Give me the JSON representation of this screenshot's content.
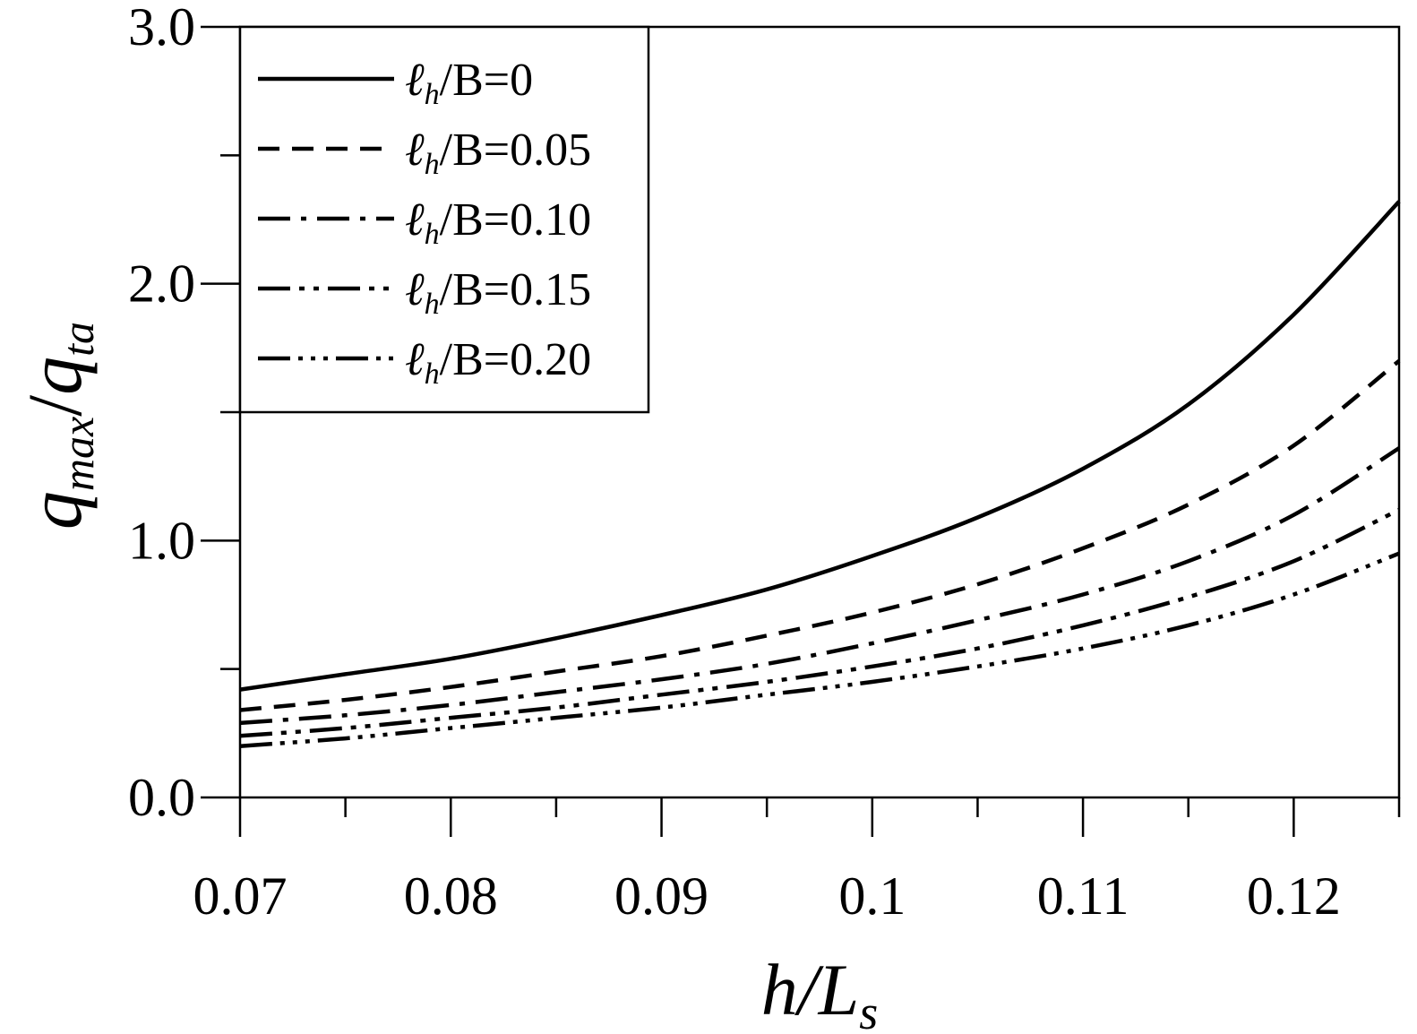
{
  "chart_data": {
    "type": "line",
    "xlabel": {
      "main": "h/L",
      "sub": "s"
    },
    "ylabel": {
      "q": "q",
      "sub1": "max",
      "slash": "/",
      "q2": "q",
      "sub2": "ta"
    },
    "xlim": [
      0.07,
      0.125
    ],
    "ylim": [
      0.0,
      3.0
    ],
    "x_ticks": [
      0.07,
      0.08,
      0.09,
      0.1,
      0.11,
      0.12
    ],
    "x_tick_labels": [
      "0.07",
      "0.08",
      "0.09",
      "0.1",
      "0.11",
      "0.12"
    ],
    "x_minor_ticks": [
      0.075,
      0.085,
      0.095,
      0.105,
      0.115,
      0.125
    ],
    "y_ticks": [
      0.0,
      1.0,
      2.0,
      3.0
    ],
    "y_tick_labels": [
      "0.0",
      "1.0",
      "2.0",
      "3.0"
    ],
    "y_minor_ticks": [
      0.5,
      1.5,
      2.5
    ],
    "grid": false,
    "legend_position": "top-left",
    "x": [
      0.07,
      0.075,
      0.08,
      0.085,
      0.09,
      0.095,
      0.1,
      0.105,
      0.11,
      0.115,
      0.12,
      0.125
    ],
    "series": [
      {
        "name": "ℓh/B=0",
        "legend": {
          "pre": "ℓ",
          "sub": "h",
          "post": "/B=0"
        },
        "dash": "solid",
        "values": [
          0.42,
          0.48,
          0.54,
          0.62,
          0.71,
          0.81,
          0.94,
          1.09,
          1.28,
          1.53,
          1.88,
          2.32
        ]
      },
      {
        "name": "ℓh/B=0.05",
        "legend": {
          "pre": "ℓ",
          "sub": "h",
          "post": "/B=0.05"
        },
        "dash": "dash",
        "values": [
          0.34,
          0.38,
          0.43,
          0.49,
          0.55,
          0.63,
          0.72,
          0.83,
          0.97,
          1.14,
          1.37,
          1.7
        ]
      },
      {
        "name": "ℓh/B=0.10",
        "legend": {
          "pre": "ℓ",
          "sub": "h",
          "post": "/B=0.10"
        },
        "dash": "dashdot",
        "values": [
          0.29,
          0.32,
          0.36,
          0.41,
          0.46,
          0.52,
          0.6,
          0.69,
          0.79,
          0.92,
          1.1,
          1.36
        ]
      },
      {
        "name": "ℓh/B=0.15",
        "legend": {
          "pre": "ℓ",
          "sub": "h",
          "post": "/B=0.15"
        },
        "dash": "dashdotdot",
        "values": [
          0.24,
          0.27,
          0.31,
          0.35,
          0.4,
          0.45,
          0.51,
          0.58,
          0.67,
          0.78,
          0.92,
          1.12
        ]
      },
      {
        "name": "ℓh/B=0.20",
        "legend": {
          "pre": "ℓ",
          "sub": "h",
          "post": "/B=0.20"
        },
        "dash": "dashdotdotdot",
        "values": [
          0.2,
          0.23,
          0.27,
          0.31,
          0.35,
          0.4,
          0.45,
          0.51,
          0.58,
          0.67,
          0.79,
          0.95
        ]
      }
    ]
  }
}
